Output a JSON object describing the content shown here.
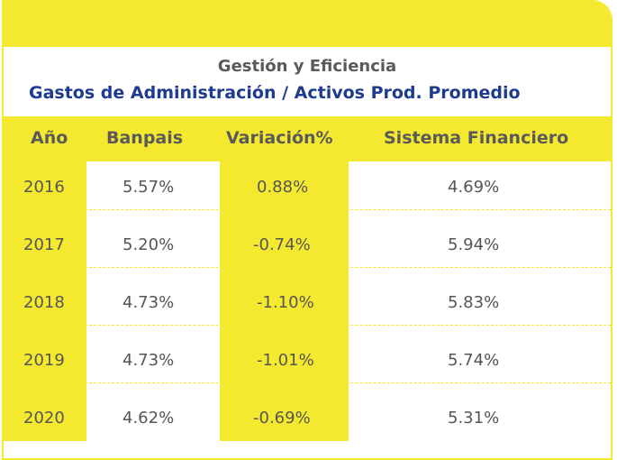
{
  "title": "Gestión y Eficiencia",
  "subtitle": "Gastos de Administración / Activos Prod. Promedio",
  "headers": [
    "Año",
    "Banpais",
    "Variación%",
    "Sistema Financiero"
  ],
  "rows": [
    [
      "2016",
      "5.57%",
      "0.88%",
      "4.69%"
    ],
    [
      "2017",
      "5.20%",
      "-0.74%",
      "5.94%"
    ],
    [
      "2018",
      "4.73%",
      "-1.10%",
      "5.83%"
    ],
    [
      "2019",
      "4.73%",
      "-1.01%",
      "5.74%"
    ],
    [
      "2020",
      "4.62%",
      "-0.69%",
      "5.31%"
    ]
  ],
  "colors": {
    "accent": "#f5e92f",
    "title": "#5a5a5a",
    "subtitle": "#1f3b8f",
    "text": "#555555"
  }
}
